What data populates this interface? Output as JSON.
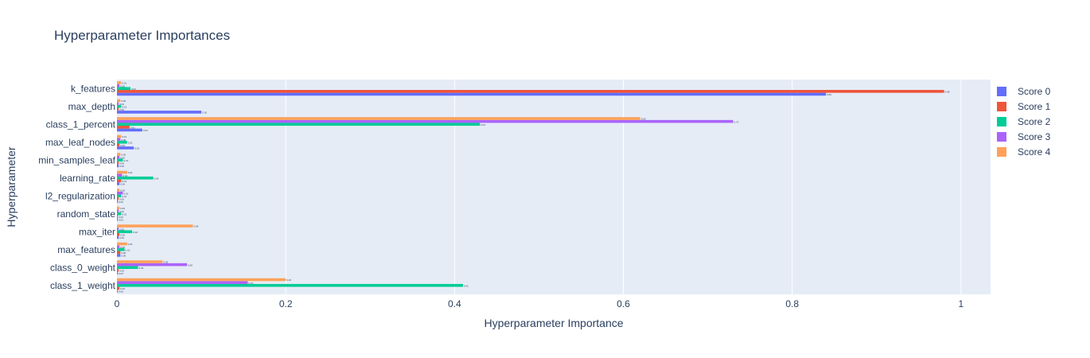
{
  "chart_data": {
    "type": "bar",
    "orientation": "horizontal",
    "barmode": "group",
    "title": "Hyperparameter Importances",
    "xlabel": "Hyperparameter Importance",
    "ylabel": "Hyperparameter",
    "xlim": [
      0,
      1.035
    ],
    "xticks": [
      0,
      0.2,
      0.4,
      0.6,
      0.8,
      1
    ],
    "xtick_labels": [
      "0",
      "0.2",
      "0.4",
      "0.6",
      "0.8",
      "1"
    ],
    "grid": true,
    "legend_position": "right",
    "categories": [
      "k_features",
      "max_depth",
      "class_1_percent",
      "max_leaf_nodes",
      "min_samples_leaf",
      "learning_rate",
      "l2_regularization",
      "random_state",
      "max_iter",
      "max_features",
      "class_0_weight",
      "class_1_weight"
    ],
    "series": [
      {
        "name": "Score 0",
        "color": "#636efa",
        "values": [
          0.84,
          0.1,
          0.03,
          0.02,
          0.002,
          0.003,
          0.001,
          0.001,
          0.002,
          0.004,
          0.001,
          0.001
        ]
      },
      {
        "name": "Score 1",
        "color": "#ef553b",
        "values": [
          0.98,
          0.002,
          0.015,
          0.003,
          0.002,
          0.005,
          0.002,
          0.001,
          0.003,
          0.004,
          0.002,
          0.003
        ]
      },
      {
        "name": "Score 2",
        "color": "#00cc96",
        "values": [
          0.016,
          0.005,
          0.43,
          0.012,
          0.007,
          0.043,
          0.005,
          0.005,
          0.018,
          0.009,
          0.025,
          0.41
        ]
      },
      {
        "name": "Score 3",
        "color": "#ab63fa",
        "values": [
          0.003,
          0.002,
          0.73,
          0.004,
          0.003,
          0.006,
          0.007,
          0.002,
          0.002,
          0.003,
          0.083,
          0.155
        ]
      },
      {
        "name": "Score 4",
        "color": "#ffa15a",
        "values": [
          0.005,
          0.004,
          0.62,
          0.005,
          0.004,
          0.012,
          0.003,
          0.003,
          0.09,
          0.012,
          0.054,
          0.2
        ]
      }
    ]
  }
}
